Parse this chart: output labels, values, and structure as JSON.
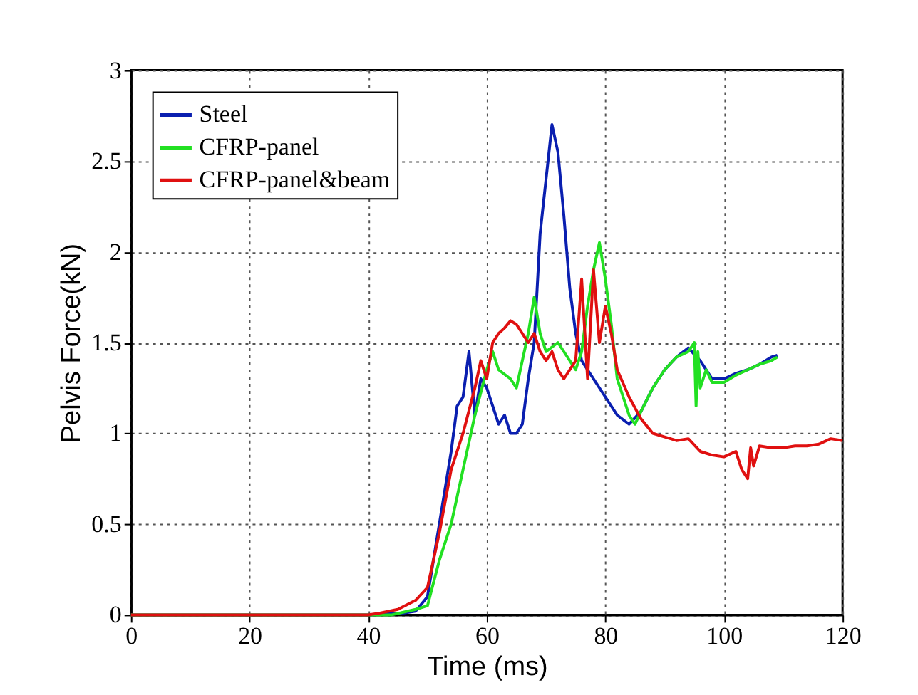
{
  "chart_data": {
    "type": "line",
    "xlabel": "Time (ms)",
    "ylabel": "Pelvis Force(kN)",
    "xlim": [
      0,
      120
    ],
    "ylim": [
      0,
      3
    ],
    "xticks": [
      0,
      20,
      40,
      60,
      80,
      100,
      120
    ],
    "yticks": [
      0,
      0.5,
      1,
      1.5,
      2,
      2.5,
      3
    ],
    "grid": true,
    "legend": "top left",
    "line_style": "solid",
    "marker": "none",
    "series": [
      {
        "name": "Steel",
        "color": "#0a1fb0",
        "x": [
          0,
          20,
          40,
          46,
          48,
          50,
          52,
          54,
          55,
          56,
          57,
          58,
          59,
          60,
          61,
          62,
          63,
          64,
          65,
          66,
          67,
          68,
          69,
          70,
          71,
          72,
          73,
          74,
          75,
          76,
          77,
          78,
          80,
          82,
          84,
          86,
          88,
          90,
          92,
          94,
          96,
          98,
          100,
          102,
          104,
          106,
          108,
          109
        ],
        "values": [
          0,
          0,
          0,
          0.01,
          0.02,
          0.1,
          0.5,
          0.9,
          1.15,
          1.2,
          1.45,
          1.1,
          1.3,
          1.25,
          1.15,
          1.05,
          1.1,
          1.0,
          1.0,
          1.05,
          1.3,
          1.5,
          2.1,
          2.4,
          2.7,
          2.55,
          2.2,
          1.8,
          1.55,
          1.4,
          1.35,
          1.3,
          1.2,
          1.1,
          1.05,
          1.12,
          1.25,
          1.35,
          1.42,
          1.47,
          1.4,
          1.3,
          1.3,
          1.33,
          1.35,
          1.38,
          1.42,
          1.43
        ]
      },
      {
        "name": "CFRP-panel",
        "color": "#22e022",
        "x": [
          0,
          20,
          40,
          44,
          48,
          50,
          52,
          54,
          56,
          58,
          60,
          61,
          62,
          64,
          65,
          66,
          67,
          68,
          69,
          70,
          72,
          74,
          75,
          76,
          77,
          78,
          79,
          80,
          81,
          82,
          84,
          85,
          86,
          88,
          90,
          92,
          94,
          95,
          95.3,
          95.6,
          96,
          97,
          98,
          100,
          102,
          104,
          106,
          108,
          109
        ],
        "values": [
          0,
          0,
          0,
          0,
          0.03,
          0.05,
          0.3,
          0.5,
          0.8,
          1.1,
          1.35,
          1.45,
          1.35,
          1.3,
          1.25,
          1.4,
          1.55,
          1.75,
          1.55,
          1.45,
          1.5,
          1.4,
          1.35,
          1.45,
          1.7,
          1.9,
          2.05,
          1.85,
          1.6,
          1.3,
          1.1,
          1.05,
          1.12,
          1.25,
          1.35,
          1.42,
          1.45,
          1.5,
          1.15,
          1.45,
          1.25,
          1.35,
          1.28,
          1.28,
          1.32,
          1.35,
          1.38,
          1.4,
          1.42
        ]
      },
      {
        "name": "CFRP-panel&beam",
        "color": "#e01010",
        "x": [
          0,
          20,
          40,
          42,
          45,
          48,
          50,
          52,
          54,
          56,
          58,
          59,
          60,
          61,
          62,
          63,
          64,
          65,
          66,
          67,
          68,
          69,
          70,
          71,
          72,
          73,
          74,
          75,
          76,
          77,
          78,
          79,
          80,
          81,
          82,
          84,
          86,
          88,
          90,
          92,
          94,
          96,
          98,
          100,
          102,
          103,
          104,
          104.5,
          105,
          106,
          108,
          110,
          112,
          114,
          116,
          118,
          120
        ],
        "values": [
          0,
          0,
          0,
          0.01,
          0.03,
          0.08,
          0.15,
          0.45,
          0.8,
          1.0,
          1.25,
          1.4,
          1.3,
          1.5,
          1.55,
          1.58,
          1.62,
          1.6,
          1.55,
          1.5,
          1.55,
          1.45,
          1.4,
          1.45,
          1.35,
          1.3,
          1.35,
          1.4,
          1.85,
          1.3,
          1.9,
          1.5,
          1.7,
          1.55,
          1.35,
          1.2,
          1.08,
          1.0,
          0.98,
          0.96,
          0.97,
          0.9,
          0.88,
          0.87,
          0.9,
          0.8,
          0.75,
          0.92,
          0.82,
          0.93,
          0.92,
          0.92,
          0.93,
          0.93,
          0.94,
          0.97,
          0.96
        ]
      }
    ]
  }
}
